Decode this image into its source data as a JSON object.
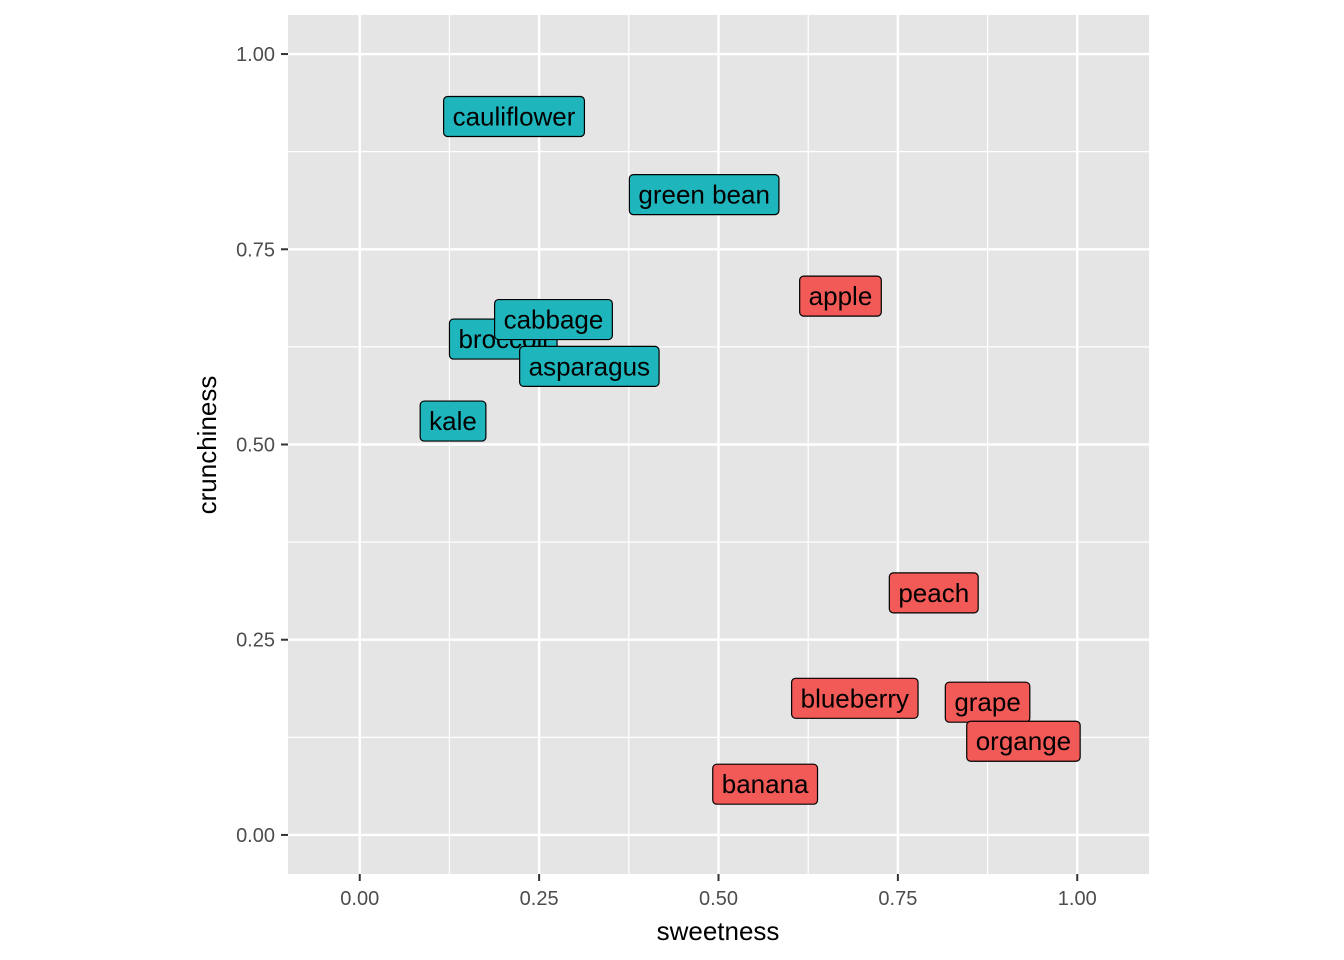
{
  "chart_data": {
    "type": "scatter",
    "xlabel": "sweetness",
    "ylabel": "crunchiness",
    "xlim": [
      -0.1,
      1.1
    ],
    "ylim": [
      -0.05,
      1.05
    ],
    "xticks": [
      0,
      0.25,
      0.5,
      0.75,
      1
    ],
    "yticks": [
      0,
      0.25,
      0.5,
      0.75,
      1
    ],
    "xtick_labels": [
      "0.00",
      "0.25",
      "0.50",
      "0.75",
      "1.00"
    ],
    "ytick_labels": [
      "0.00",
      "0.25",
      "0.50",
      "0.75",
      "1.00"
    ],
    "grid": true,
    "legend": "none",
    "panel_background": "#e5e5e5",
    "grid_color": "#ffffff",
    "series": [
      {
        "color": "#1fb5bc",
        "points": [
          {
            "label": "cauliflower",
            "x": 0.215,
            "y": 0.92
          },
          {
            "label": "green bean",
            "x": 0.48,
            "y": 0.82
          },
          {
            "label": "broccoli",
            "x": 0.2,
            "y": 0.635
          },
          {
            "label": "cabbage",
            "x": 0.27,
            "y": 0.66
          },
          {
            "label": "asparagus",
            "x": 0.32,
            "y": 0.6
          },
          {
            "label": "kale",
            "x": 0.13,
            "y": 0.53
          }
        ]
      },
      {
        "color": "#f25a57",
        "points": [
          {
            "label": "apple",
            "x": 0.67,
            "y": 0.69
          },
          {
            "label": "peach",
            "x": 0.8,
            "y": 0.31
          },
          {
            "label": "blueberry",
            "x": 0.69,
            "y": 0.175
          },
          {
            "label": "grape",
            "x": 0.875,
            "y": 0.17
          },
          {
            "label": "organge",
            "x": 0.925,
            "y": 0.12
          },
          {
            "label": "banana",
            "x": 0.565,
            "y": 0.065
          }
        ]
      }
    ]
  }
}
